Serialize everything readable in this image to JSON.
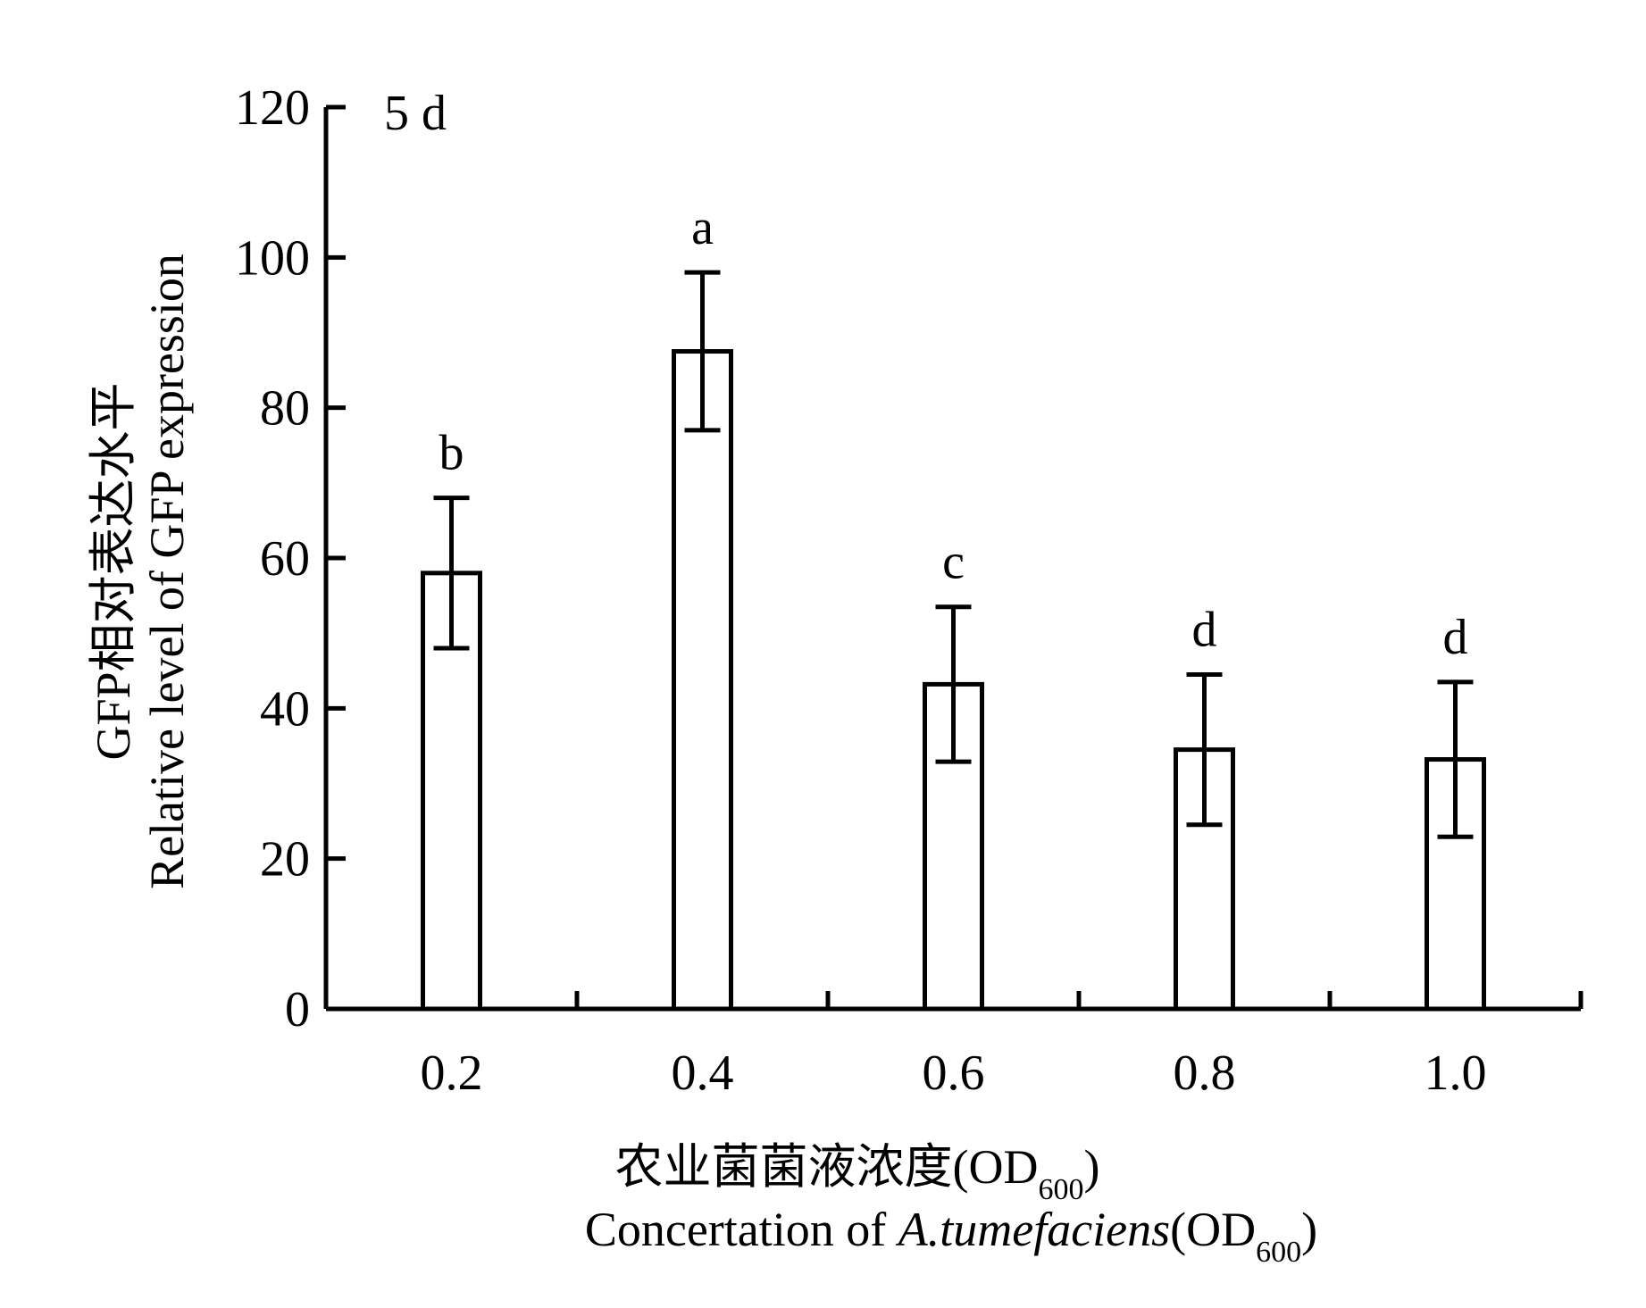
{
  "chart_data": {
    "type": "bar",
    "panel_label": "5 d",
    "categories": [
      "0.2",
      "0.4",
      "0.6",
      "0.8",
      "1.0"
    ],
    "values": [
      58.0,
      87.5,
      43.2,
      34.5,
      33.2
    ],
    "error": [
      10.0,
      10.5,
      10.3,
      10.0,
      10.3
    ],
    "significance": [
      "b",
      "a",
      "c",
      "d",
      "d"
    ],
    "ylim": [
      0,
      120
    ],
    "yticks": [
      0,
      20,
      40,
      60,
      80,
      100,
      120
    ],
    "ylabel_cn": "GFP相对表达水平",
    "ylabel_en": "Relative level of GFP expression",
    "xlabel_cn": "农业菌菌液浓度(OD",
    "xlabel_cn_sub": "600",
    "xlabel_cn_end": ")",
    "xlabel_en_prefix": "Concertation of ",
    "xlabel_en_italic": "A.tumefaciens",
    "xlabel_en_suffix": "(OD",
    "xlabel_en_sub": "600",
    "xlabel_en_end": ")",
    "bar_fill": "#ffffff",
    "stroke_color": "#000000",
    "grid": false
  }
}
